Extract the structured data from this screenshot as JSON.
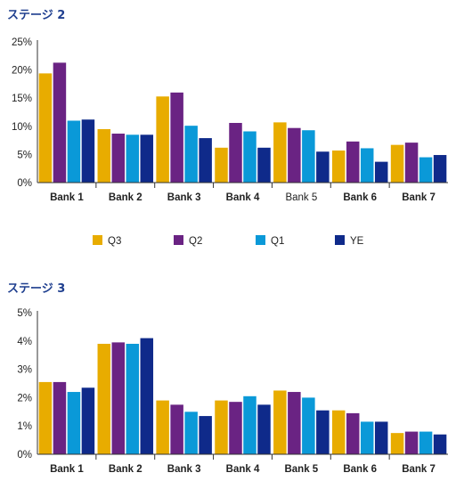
{
  "colors": {
    "title": "#1f3f8f",
    "axis": "#333333",
    "tick_text": "#222222"
  },
  "legend": [
    {
      "label": "Q3",
      "color": "#e8ac00"
    },
    {
      "label": "Q2",
      "color": "#6a2383"
    },
    {
      "label": "Q1",
      "color": "#0a99d8"
    },
    {
      "label": "YE",
      "color": "#0f2a8a"
    }
  ],
  "chart_data": [
    {
      "type": "bar",
      "title": "ステージ 2",
      "categories": [
        "Bank 1",
        "Bank 2",
        "Bank 3",
        "Bank 4",
        "Bank 5",
        "Bank 6",
        "Bank 7"
      ],
      "category_bold": [
        true,
        true,
        true,
        true,
        false,
        true,
        true
      ],
      "yticks": [
        "0%",
        "5%",
        "10%",
        "15%",
        "20%",
        "25%"
      ],
      "ylim": [
        0,
        25
      ],
      "series": [
        {
          "name": "Q3",
          "values": [
            19.4,
            9.5,
            15.3,
            6.2,
            10.7,
            5.7,
            6.7
          ]
        },
        {
          "name": "Q2",
          "values": [
            21.3,
            8.7,
            16.0,
            10.6,
            9.7,
            7.3,
            7.1
          ]
        },
        {
          "name": "Q1",
          "values": [
            11.0,
            8.5,
            10.1,
            9.1,
            9.3,
            6.1,
            4.5
          ]
        },
        {
          "name": "YE",
          "values": [
            11.2,
            8.5,
            7.9,
            6.2,
            5.5,
            3.7,
            4.9
          ]
        }
      ]
    },
    {
      "type": "bar",
      "title": "ステージ 3",
      "categories": [
        "Bank 1",
        "Bank 2",
        "Bank 3",
        "Bank 4",
        "Bank 5",
        "Bank 6",
        "Bank 7"
      ],
      "category_bold": [
        true,
        true,
        true,
        true,
        true,
        true,
        true
      ],
      "yticks": [
        "0%",
        "1%",
        "2%",
        "3%",
        "4%",
        "5%"
      ],
      "ylim": [
        0,
        5
      ],
      "series": [
        {
          "name": "Q3",
          "values": [
            2.55,
            3.9,
            1.9,
            1.9,
            2.25,
            1.55,
            0.75
          ]
        },
        {
          "name": "Q2",
          "values": [
            2.55,
            3.95,
            1.75,
            1.85,
            2.2,
            1.45,
            0.8
          ]
        },
        {
          "name": "Q1",
          "values": [
            2.2,
            3.9,
            1.5,
            2.05,
            2.0,
            1.15,
            0.8
          ]
        },
        {
          "name": "YE",
          "values": [
            2.35,
            4.1,
            1.35,
            1.75,
            1.55,
            1.15,
            0.7
          ]
        }
      ]
    }
  ]
}
